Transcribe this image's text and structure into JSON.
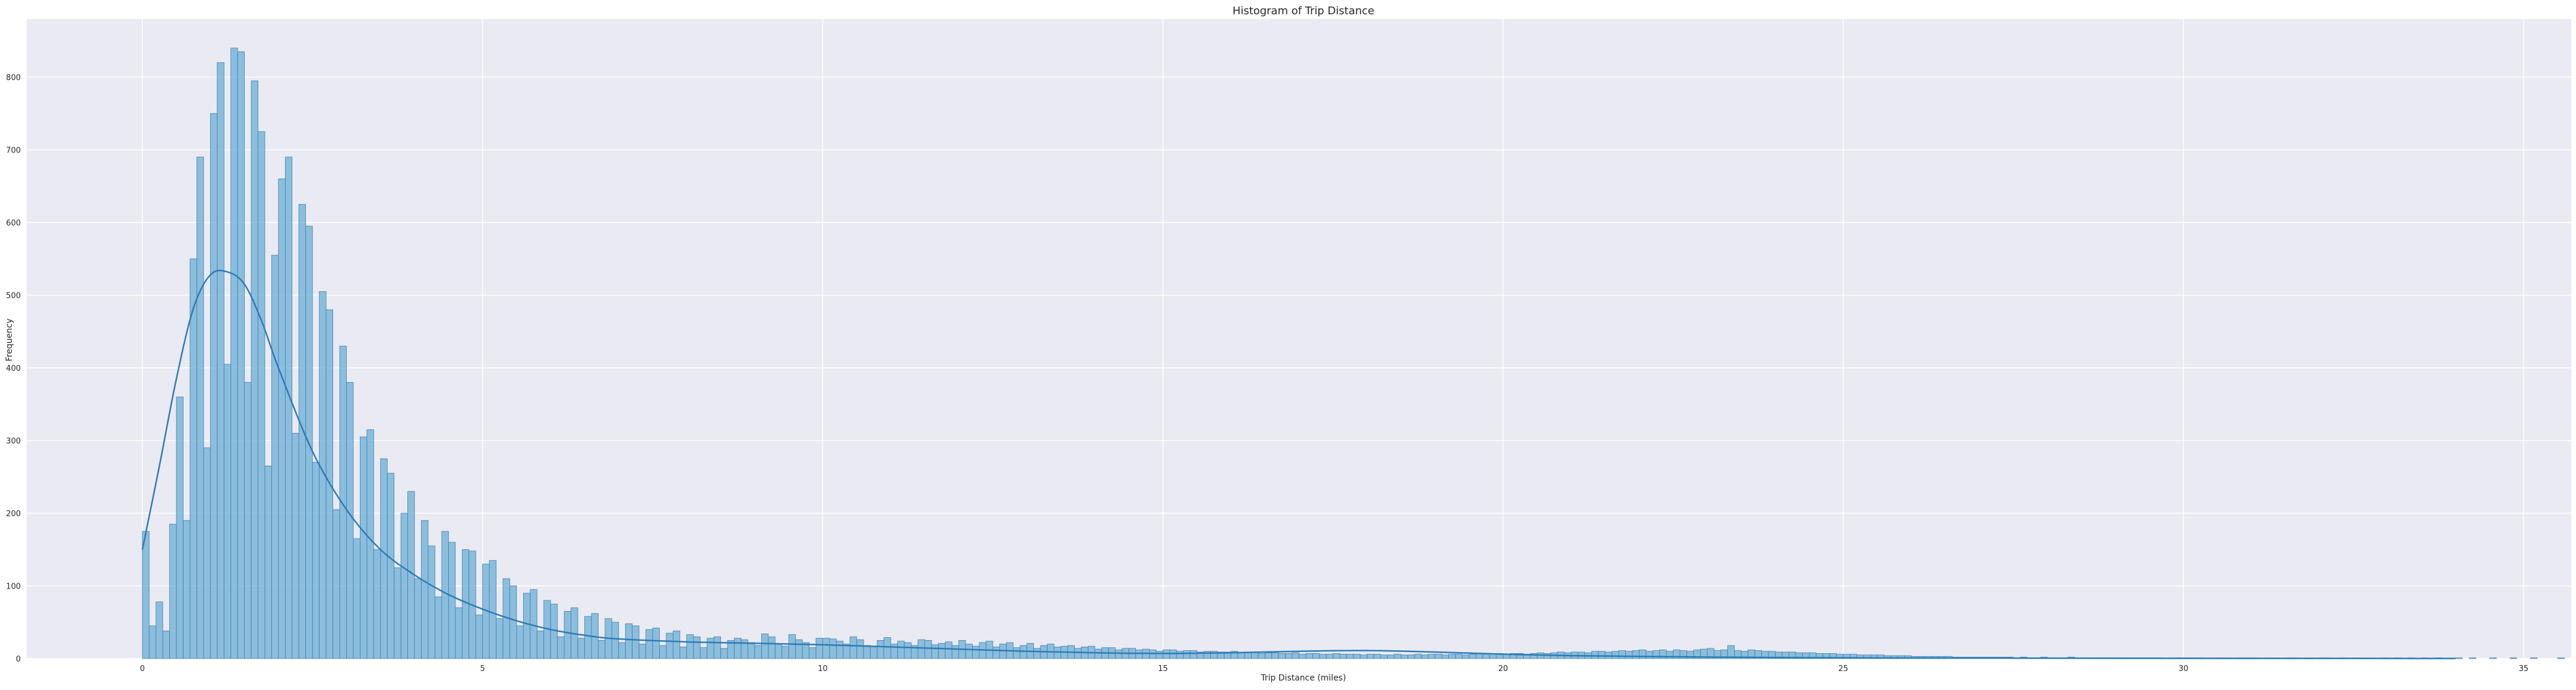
{
  "chart_data": {
    "type": "histogram",
    "title": "Histogram of Trip Distance",
    "xlabel": "Trip Distance (miles)",
    "ylabel": "Frequency",
    "xlim": [
      -1.7,
      35.7
    ],
    "ylim": [
      0,
      880
    ],
    "xticks": [
      0,
      5,
      10,
      15,
      20,
      25,
      30,
      35
    ],
    "xtick_labels": [
      "0",
      "5",
      "10",
      "15",
      "20",
      "25",
      "30",
      "35"
    ],
    "yticks": [
      0,
      100,
      200,
      300,
      400,
      500,
      600,
      700,
      800
    ],
    "ytick_labels": [
      "0",
      "100",
      "200",
      "300",
      "400",
      "500",
      "600",
      "700",
      "800"
    ],
    "grid": true,
    "bin_width": 0.1,
    "bin_start": 0,
    "bar_color": "#6baed6",
    "bar_edge_color": "#3f7fae",
    "kde_color": "#2c7bb6",
    "background_color": "#eaeaf2",
    "grid_color": "#ffffff",
    "counts": [
      175,
      45,
      78,
      38,
      185,
      360,
      190,
      550,
      690,
      290,
      750,
      820,
      405,
      840,
      835,
      380,
      795,
      725,
      265,
      555,
      660,
      690,
      310,
      625,
      595,
      270,
      505,
      480,
      205,
      430,
      380,
      165,
      305,
      315,
      150,
      275,
      255,
      125,
      200,
      230,
      110,
      190,
      155,
      85,
      175,
      160,
      70,
      150,
      148,
      60,
      130,
      135,
      55,
      110,
      100,
      45,
      90,
      95,
      38,
      80,
      75,
      30,
      65,
      70,
      28,
      58,
      62,
      25,
      55,
      50,
      22,
      48,
      45,
      20,
      40,
      42,
      18,
      35,
      38,
      16,
      33,
      30,
      15,
      28,
      30,
      14,
      25,
      28,
      26,
      22,
      18,
      34,
      30,
      20,
      17,
      33,
      26,
      22,
      15,
      28,
      28,
      27,
      24,
      20,
      30,
      26,
      18,
      17,
      25,
      29,
      20,
      24,
      22,
      18,
      26,
      25,
      19,
      21,
      23,
      18,
      25,
      20,
      17,
      22,
      24,
      16,
      20,
      22,
      15,
      18,
      21,
      14,
      18,
      20,
      16,
      17,
      18,
      14,
      16,
      17,
      13,
      15,
      15,
      12,
      14,
      14,
      12,
      13,
      12,
      10,
      12,
      12,
      10,
      11,
      11,
      9,
      10,
      10,
      9,
      9,
      10,
      8,
      8,
      9,
      7,
      8,
      8,
      7,
      7,
      8,
      6,
      7,
      7,
      6,
      6,
      7,
      6,
      6,
      6,
      5,
      6,
      6,
      5,
      5,
      6,
      5,
      5,
      6,
      5,
      6,
      6,
      5,
      6,
      6,
      5,
      6,
      7,
      6,
      6,
      7,
      6,
      7,
      7,
      6,
      7,
      8,
      7,
      8,
      9,
      8,
      9,
      9,
      8,
      10,
      10,
      9,
      10,
      11,
      10,
      11,
      12,
      10,
      11,
      12,
      10,
      12,
      11,
      10,
      12,
      13,
      14,
      11,
      12,
      18,
      11,
      10,
      12,
      11,
      10,
      10,
      9,
      9,
      9,
      8,
      8,
      8,
      7,
      7,
      7,
      6,
      6,
      6,
      5,
      5,
      5,
      5,
      4,
      4,
      4,
      4,
      3,
      3,
      3,
      3,
      3,
      3,
      2,
      2,
      2,
      2,
      2,
      2,
      2,
      2,
      2,
      1,
      2,
      1,
      1,
      2,
      1,
      1,
      1,
      2,
      1,
      1,
      1,
      1,
      1,
      1,
      1,
      1,
      1,
      1,
      1,
      1,
      1,
      0,
      1,
      1,
      1,
      1,
      1,
      0,
      1,
      1,
      1,
      0,
      1,
      1,
      1,
      0,
      1,
      1,
      0,
      1,
      1,
      0,
      1,
      0,
      1,
      1,
      0,
      1,
      0,
      1,
      0,
      1,
      0,
      1,
      0,
      1,
      0,
      1,
      0,
      1,
      0,
      1,
      0,
      0,
      1,
      0,
      1,
      0,
      0,
      1,
      0,
      0,
      1,
      0,
      0,
      1,
      0,
      0,
      0,
      1,
      0,
      0,
      0,
      1,
      0,
      0,
      0,
      0,
      1,
      0,
      0,
      0,
      0,
      0,
      1
    ],
    "kde": {
      "x": [
        0,
        0.25,
        0.5,
        0.75,
        1.0,
        1.25,
        1.5,
        1.75,
        2.0,
        2.5,
        3.0,
        3.5,
        4.0,
        4.5,
        5.0,
        5.5,
        6.0,
        6.5,
        7.0,
        8.0,
        9.0,
        10.0,
        11.0,
        12.0,
        13.0,
        14.0,
        15.0,
        16.0,
        17.0,
        18.0,
        19.0,
        20.0,
        21.0,
        22.0,
        23.0,
        24.0,
        25.0,
        26.0,
        28.0,
        30.0,
        32.0,
        34.0
      ],
      "y": [
        150,
        265,
        385,
        482,
        528,
        532,
        515,
        465,
        400,
        285,
        205,
        150,
        115,
        88,
        68,
        52,
        40,
        32,
        27,
        23,
        21,
        19,
        16,
        13,
        10,
        8,
        7,
        8,
        10,
        11,
        9,
        6,
        4,
        3,
        2,
        1.5,
        1,
        0.8,
        0.5,
        0.3,
        0.2,
        0.1
      ]
    }
  }
}
